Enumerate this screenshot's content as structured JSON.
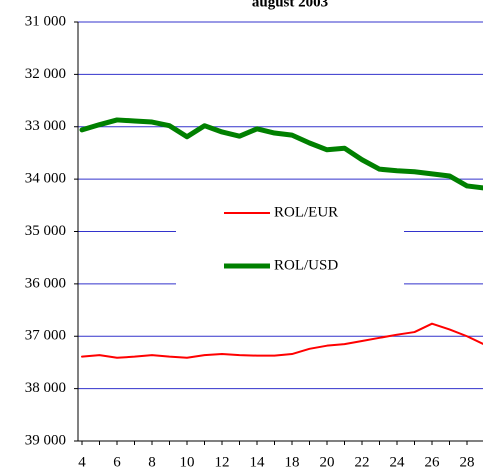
{
  "chart_data": {
    "type": "line",
    "title": "august 2003",
    "categories": [
      "4",
      null,
      "6",
      null,
      "8",
      null,
      "10",
      null,
      "12",
      null,
      "14",
      null,
      "18",
      null,
      "20",
      null,
      "22",
      null,
      "24",
      null,
      "26",
      null,
      "28",
      null
    ],
    "series": [
      {
        "name": "ROL/EUR",
        "color": "#ff0000",
        "width": 2,
        "values": [
          37390,
          37360,
          37410,
          37390,
          37360,
          37390,
          37410,
          37360,
          37340,
          37360,
          37370,
          37370,
          37340,
          37240,
          37180,
          37150,
          37090,
          37030,
          36970,
          36920,
          36760,
          36870,
          37000,
          37160
        ]
      },
      {
        "name": "ROL/USD",
        "color": "#008000",
        "width": 5,
        "values": [
          33060,
          32960,
          32870,
          32890,
          32910,
          32980,
          33190,
          32980,
          33100,
          33180,
          33040,
          33120,
          33160,
          33310,
          33440,
          33410,
          33630,
          33810,
          33840,
          33860,
          33900,
          33940,
          34130,
          34170
        ]
      }
    ],
    "ylim": [
      31000,
      39000
    ],
    "y_inverted": true,
    "yticks": [
      {
        "value": 31000,
        "label": "31 000"
      },
      {
        "value": 32000,
        "label": "32 000"
      },
      {
        "value": 33000,
        "label": "33 000"
      },
      {
        "value": 34000,
        "label": "34 000"
      },
      {
        "value": 35000,
        "label": "35 000"
      },
      {
        "value": 36000,
        "label": "36 000"
      },
      {
        "value": 37000,
        "label": "37 000"
      },
      {
        "value": 38000,
        "label": "38 000"
      },
      {
        "value": 39000,
        "label": "39 000"
      }
    ],
    "grid": true,
    "grid_color": "#3333cc",
    "legend": "center"
  }
}
